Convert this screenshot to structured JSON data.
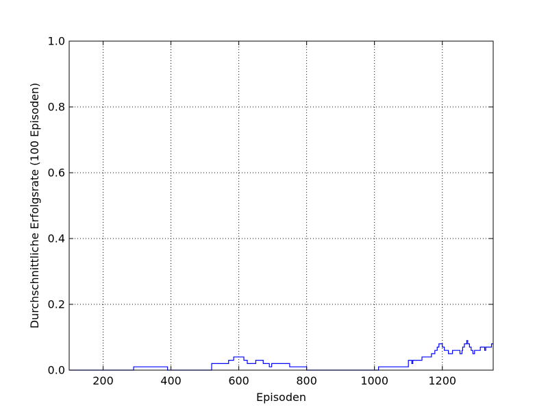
{
  "chart_data": {
    "type": "line",
    "title": "",
    "xlabel": "Episoden",
    "ylabel": "Durchschnittliche Erfolgsrate (100 Episoden)",
    "xlim": [
      100,
      1350
    ],
    "ylim": [
      0.0,
      1.0
    ],
    "xticks": [
      200,
      400,
      600,
      800,
      1000,
      1200
    ],
    "xtick_labels": [
      "200",
      "400",
      "600",
      "800",
      "1000",
      "1200"
    ],
    "yticks": [
      0.0,
      0.2,
      0.4,
      0.6,
      0.8,
      1.0
    ],
    "ytick_labels": [
      "0.0",
      "0.2",
      "0.4",
      "0.6",
      "0.8",
      "1.0"
    ],
    "grid": true,
    "legend": "none",
    "series": [
      {
        "color": "#0000ff",
        "x": [
          100,
          290,
          290,
          390,
          390,
          520,
          520,
          570,
          570,
          585,
          585,
          615,
          615,
          625,
          625,
          650,
          650,
          672,
          672,
          690,
          690,
          697,
          697,
          700,
          700,
          750,
          750,
          800,
          800,
          1012,
          1012,
          1100,
          1100,
          1110,
          1110,
          1113,
          1113,
          1140,
          1140,
          1168,
          1168,
          1178,
          1178,
          1185,
          1185,
          1190,
          1190,
          1200,
          1200,
          1206,
          1206,
          1218,
          1218,
          1230,
          1230,
          1252,
          1252,
          1258,
          1258,
          1260,
          1260,
          1265,
          1265,
          1272,
          1272,
          1275,
          1275,
          1280,
          1280,
          1285,
          1285,
          1290,
          1290,
          1295,
          1295,
          1297,
          1297,
          1312,
          1312,
          1325,
          1325,
          1328,
          1328,
          1345,
          1345,
          1350
        ],
        "y": [
          0.0,
          0.0,
          0.01,
          0.01,
          0.0,
          0.0,
          0.02,
          0.02,
          0.03,
          0.03,
          0.04,
          0.04,
          0.03,
          0.03,
          0.02,
          0.02,
          0.03,
          0.03,
          0.02,
          0.02,
          0.01,
          0.01,
          0.02,
          0.02,
          0.02,
          0.02,
          0.01,
          0.01,
          0.0,
          0.0,
          0.01,
          0.01,
          0.03,
          0.03,
          0.02,
          0.02,
          0.03,
          0.03,
          0.04,
          0.04,
          0.05,
          0.05,
          0.06,
          0.06,
          0.07,
          0.07,
          0.08,
          0.08,
          0.07,
          0.07,
          0.06,
          0.06,
          0.05,
          0.05,
          0.06,
          0.06,
          0.05,
          0.05,
          0.06,
          0.06,
          0.07,
          0.07,
          0.08,
          0.08,
          0.09,
          0.09,
          0.08,
          0.08,
          0.07,
          0.07,
          0.06,
          0.06,
          0.05,
          0.05,
          0.06,
          0.06,
          0.06,
          0.06,
          0.07,
          0.07,
          0.06,
          0.06,
          0.07,
          0.07,
          0.08,
          0.08
        ]
      }
    ]
  }
}
